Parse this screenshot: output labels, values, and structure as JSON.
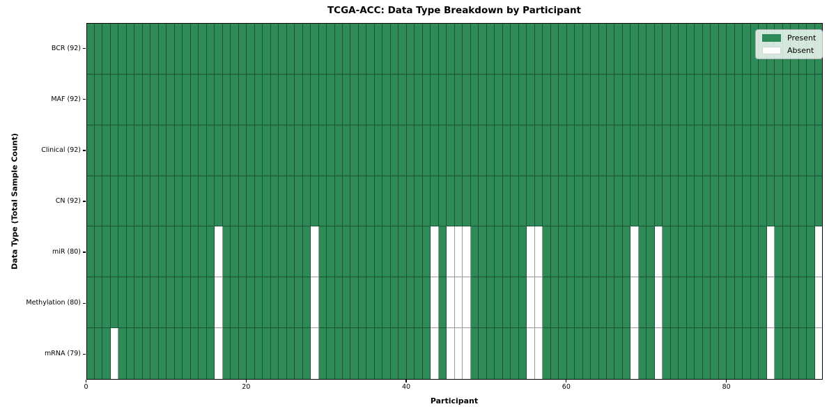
{
  "title": "TCGA-ACC: Data Type Breakdown by Participant",
  "colors": {
    "present": "#2e8b57",
    "absent": "#ffffff"
  },
  "legend": {
    "items": [
      {
        "label": "Present",
        "key": "present"
      },
      {
        "label": "Absent",
        "key": "absent"
      }
    ]
  },
  "chart_data": {
    "type": "heatmap",
    "title": "TCGA-ACC: Data Type Breakdown by Participant",
    "xlabel": "Participant",
    "ylabel": "Data Type (Total Sample Count)",
    "n_participants": 92,
    "x_ticks": [
      0,
      20,
      40,
      60,
      80
    ],
    "legend_position": "upper right",
    "cell_values": "1 = present (green), 0 = absent (white)",
    "rows": [
      {
        "label": "BCR (92)",
        "data_type": "BCR",
        "present_count": 92,
        "absent_participants": []
      },
      {
        "label": "MAF (92)",
        "data_type": "MAF",
        "present_count": 92,
        "absent_participants": []
      },
      {
        "label": "Clinical (92)",
        "data_type": "Clinical",
        "present_count": 92,
        "absent_participants": []
      },
      {
        "label": "CN (92)",
        "data_type": "CN",
        "present_count": 92,
        "absent_participants": []
      },
      {
        "label": "miR (80)",
        "data_type": "miR",
        "present_count": 80,
        "absent_participants": [
          16,
          28,
          43,
          45,
          46,
          47,
          55,
          56,
          68,
          71,
          85,
          91
        ]
      },
      {
        "label": "Methylation (80)",
        "data_type": "Methylation",
        "present_count": 80,
        "absent_participants": [
          16,
          28,
          43,
          45,
          46,
          47,
          55,
          56,
          68,
          71,
          85,
          91
        ]
      },
      {
        "label": "mRNA (79)",
        "data_type": "mRNA",
        "present_count": 79,
        "absent_participants": [
          3,
          16,
          28,
          43,
          45,
          46,
          47,
          55,
          56,
          68,
          71,
          85,
          91
        ]
      }
    ]
  }
}
